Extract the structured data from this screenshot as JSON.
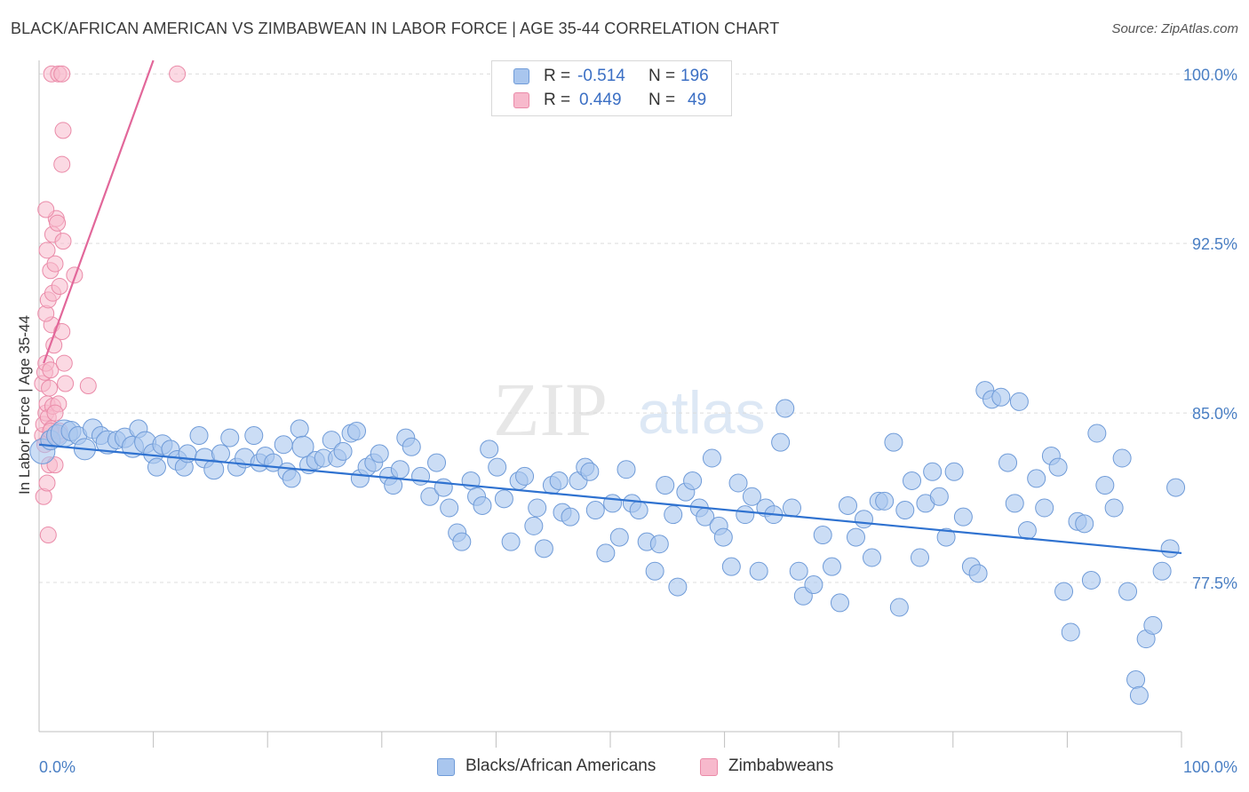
{
  "title": "BLACK/AFRICAN AMERICAN VS ZIMBABWEAN IN LABOR FORCE | AGE 35-44 CORRELATION CHART",
  "source": "Source: ZipAtlas.com",
  "watermark": {
    "zip": "ZIP",
    "atlas": "atlas"
  },
  "colors": {
    "blue_fill": "#a9c6ee",
    "blue_stroke": "#6f9bd8",
    "blue_line": "#2f72d0",
    "pink_fill": "#f7b9cc",
    "pink_stroke": "#ea8aa8",
    "pink_line": "#e2679a",
    "grid": "#dcdcdc",
    "tick_text": "#4a7fc4"
  },
  "stats": {
    "r_label": "R =",
    "n_label": "N =",
    "rows": [
      {
        "series": "Blacks/African Americans",
        "r": "-0.514",
        "n": "196"
      },
      {
        "series": "Zimbabweans",
        "r": "0.449",
        "n": "49"
      }
    ]
  },
  "legend": [
    "Blacks/African Americans",
    "Zimbabweans"
  ],
  "chart_data": {
    "type": "scatter",
    "title": "BLACK/AFRICAN AMERICAN VS ZIMBABWEAN IN LABOR FORCE | AGE 35-44 CORRELATION CHART",
    "xlabel": "",
    "ylabel": "In Labor Force | Age 35-44",
    "xlim": [
      0,
      100
    ],
    "ylim": [
      70.9,
      100.6
    ],
    "x_tick_labels": [
      "0.0%",
      "100.0%"
    ],
    "y_ticks": [
      77.5,
      85.0,
      92.5,
      100.0
    ],
    "y_tick_labels": [
      "77.5%",
      "85.0%",
      "92.5%",
      "100.0%"
    ],
    "grid": true,
    "legend_position": "bottom",
    "series": [
      {
        "name": "Blacks/African Americans",
        "color": "#a9c6ee",
        "trend": {
          "x": [
            0,
            100
          ],
          "y": [
            83.6,
            78.8
          ]
        },
        "points": [
          [
            0.3,
            83.3,
            14
          ],
          [
            1.0,
            83.8,
            11
          ],
          [
            1.6,
            84.0,
            12
          ],
          [
            2.2,
            84.1,
            15
          ],
          [
            2.8,
            84.2,
            11
          ],
          [
            3.4,
            84.0,
            10
          ],
          [
            4.0,
            83.4,
            12
          ],
          [
            4.7,
            84.3,
            11
          ],
          [
            5.4,
            84.0,
            10
          ],
          [
            6.0,
            83.7,
            13
          ],
          [
            6.8,
            83.8,
            10
          ],
          [
            7.5,
            83.9,
            11
          ],
          [
            8.2,
            83.5,
            12
          ],
          [
            8.7,
            84.3,
            10
          ],
          [
            9.3,
            83.7,
            12
          ],
          [
            10.0,
            83.2,
            11
          ],
          [
            10.3,
            82.6,
            10
          ],
          [
            10.8,
            83.6,
            11
          ],
          [
            11.5,
            83.4,
            10
          ],
          [
            12.1,
            82.9,
            11
          ],
          [
            12.7,
            82.6,
            10
          ],
          [
            13.0,
            83.2,
            10
          ],
          [
            14.0,
            84.0,
            10
          ],
          [
            14.5,
            83.0,
            11
          ],
          [
            15.3,
            82.5,
            11
          ],
          [
            15.9,
            83.2,
            10
          ],
          [
            16.7,
            83.9,
            10
          ],
          [
            17.3,
            82.6,
            10
          ],
          [
            18.0,
            83.0,
            11
          ],
          [
            18.8,
            84.0,
            10
          ],
          [
            19.3,
            82.8,
            10
          ],
          [
            19.8,
            83.1,
            10
          ],
          [
            20.5,
            82.8,
            10
          ],
          [
            21.4,
            83.6,
            10
          ],
          [
            21.7,
            82.4,
            10
          ],
          [
            22.1,
            82.1,
            10
          ],
          [
            22.8,
            84.3,
            10
          ],
          [
            23.1,
            83.5,
            12
          ],
          [
            23.6,
            82.7,
            10
          ],
          [
            24.2,
            82.9,
            10
          ],
          [
            24.9,
            83.0,
            10
          ],
          [
            25.6,
            83.8,
            10
          ],
          [
            26.1,
            83.0,
            10
          ],
          [
            26.6,
            83.3,
            10
          ],
          [
            27.3,
            84.1,
            10
          ],
          [
            27.8,
            84.2,
            10
          ],
          [
            28.1,
            82.1,
            10
          ],
          [
            28.7,
            82.6,
            10
          ],
          [
            29.3,
            82.8,
            10
          ],
          [
            29.8,
            83.2,
            10
          ],
          [
            30.6,
            82.2,
            10
          ],
          [
            31.0,
            81.8,
            10
          ],
          [
            31.6,
            82.5,
            10
          ],
          [
            32.1,
            83.9,
            10
          ],
          [
            32.6,
            83.5,
            10
          ],
          [
            33.4,
            82.2,
            10
          ],
          [
            34.2,
            81.3,
            10
          ],
          [
            34.8,
            82.8,
            10
          ],
          [
            35.4,
            81.7,
            10
          ],
          [
            35.9,
            80.8,
            10
          ],
          [
            36.6,
            79.7,
            10
          ],
          [
            37.0,
            79.3,
            10
          ],
          [
            37.8,
            82.0,
            10
          ],
          [
            38.3,
            81.3,
            10
          ],
          [
            38.8,
            80.9,
            10
          ],
          [
            39.4,
            83.4,
            10
          ],
          [
            40.1,
            82.6,
            10
          ],
          [
            40.7,
            81.2,
            10
          ],
          [
            41.3,
            79.3,
            10
          ],
          [
            42.0,
            82.0,
            10
          ],
          [
            42.5,
            82.2,
            10
          ],
          [
            43.3,
            80.0,
            10
          ],
          [
            43.6,
            80.8,
            10
          ],
          [
            44.2,
            79.0,
            10
          ],
          [
            44.9,
            81.8,
            10
          ],
          [
            45.5,
            82.0,
            10
          ],
          [
            45.8,
            80.6,
            10
          ],
          [
            46.5,
            80.4,
            10
          ],
          [
            47.2,
            82.0,
            10
          ],
          [
            47.8,
            82.6,
            10
          ],
          [
            48.2,
            82.4,
            10
          ],
          [
            48.7,
            80.7,
            10
          ],
          [
            49.6,
            78.8,
            10
          ],
          [
            50.2,
            81.0,
            10
          ],
          [
            50.8,
            79.5,
            10
          ],
          [
            51.4,
            82.5,
            10
          ],
          [
            51.9,
            81.0,
            10
          ],
          [
            52.5,
            80.7,
            10
          ],
          [
            53.2,
            79.3,
            10
          ],
          [
            53.9,
            78.0,
            10
          ],
          [
            54.3,
            79.2,
            10
          ],
          [
            54.8,
            81.8,
            10
          ],
          [
            55.5,
            80.5,
            10
          ],
          [
            55.9,
            77.3,
            10
          ],
          [
            56.6,
            81.5,
            10
          ],
          [
            57.2,
            82.0,
            10
          ],
          [
            57.8,
            80.8,
            10
          ],
          [
            58.3,
            80.4,
            10
          ],
          [
            58.9,
            83.0,
            10
          ],
          [
            59.5,
            80.0,
            10
          ],
          [
            59.9,
            79.5,
            10
          ],
          [
            60.6,
            78.2,
            10
          ],
          [
            61.2,
            81.9,
            10
          ],
          [
            61.8,
            80.5,
            10
          ],
          [
            62.4,
            81.3,
            10
          ],
          [
            63.0,
            78.0,
            10
          ],
          [
            63.6,
            80.8,
            10
          ],
          [
            64.3,
            80.5,
            10
          ],
          [
            64.9,
            83.7,
            10
          ],
          [
            65.3,
            85.2,
            10
          ],
          [
            65.9,
            80.8,
            10
          ],
          [
            66.5,
            78.0,
            10
          ],
          [
            66.9,
            76.9,
            10
          ],
          [
            67.8,
            77.4,
            10
          ],
          [
            68.6,
            79.6,
            10
          ],
          [
            69.4,
            78.2,
            10
          ],
          [
            70.1,
            76.6,
            10
          ],
          [
            70.8,
            80.9,
            10
          ],
          [
            71.5,
            79.5,
            10
          ],
          [
            72.2,
            80.3,
            10
          ],
          [
            72.9,
            78.6,
            10
          ],
          [
            73.5,
            81.1,
            10
          ],
          [
            74.0,
            81.1,
            10
          ],
          [
            74.8,
            83.7,
            10
          ],
          [
            75.3,
            76.4,
            10
          ],
          [
            75.8,
            80.7,
            10
          ],
          [
            76.4,
            82.0,
            10
          ],
          [
            77.1,
            78.6,
            10
          ],
          [
            77.6,
            81.0,
            10
          ],
          [
            78.2,
            82.4,
            10
          ],
          [
            78.8,
            81.3,
            10
          ],
          [
            79.4,
            79.5,
            10
          ],
          [
            80.1,
            82.4,
            10
          ],
          [
            80.9,
            80.4,
            10
          ],
          [
            81.6,
            78.2,
            10
          ],
          [
            82.2,
            77.9,
            10
          ],
          [
            82.8,
            86.0,
            10
          ],
          [
            83.4,
            85.6,
            10
          ],
          [
            84.2,
            85.7,
            10
          ],
          [
            84.8,
            82.8,
            10
          ],
          [
            85.4,
            81.0,
            10
          ],
          [
            85.8,
            85.5,
            10
          ],
          [
            86.5,
            79.8,
            10
          ],
          [
            87.3,
            82.1,
            10
          ],
          [
            88.0,
            80.8,
            10
          ],
          [
            88.6,
            83.1,
            10
          ],
          [
            89.2,
            82.6,
            10
          ],
          [
            89.7,
            77.1,
            10
          ],
          [
            90.3,
            75.3,
            10
          ],
          [
            90.9,
            80.2,
            10
          ],
          [
            91.5,
            80.1,
            10
          ],
          [
            92.1,
            77.6,
            10
          ],
          [
            92.6,
            84.1,
            10
          ],
          [
            93.3,
            81.8,
            10
          ],
          [
            94.1,
            80.8,
            10
          ],
          [
            94.8,
            83.0,
            10
          ],
          [
            95.3,
            77.1,
            10
          ],
          [
            96.0,
            73.2,
            10
          ],
          [
            96.3,
            72.5,
            10
          ],
          [
            96.9,
            75.0,
            10
          ],
          [
            97.5,
            75.6,
            10
          ],
          [
            98.3,
            78.0,
            10
          ],
          [
            99.0,
            79.0,
            10
          ],
          [
            99.5,
            81.7,
            10
          ]
        ]
      },
      {
        "name": "Zimbabweans",
        "color": "#f7b9cc",
        "trend": {
          "x": [
            0.4,
            10.0
          ],
          "y": [
            87.2,
            100.6
          ]
        },
        "points": [
          [
            0.3,
            84.0,
            9
          ],
          [
            0.4,
            84.5,
            9
          ],
          [
            0.5,
            83.6,
            9
          ],
          [
            0.6,
            85.0,
            9
          ],
          [
            0.7,
            85.4,
            9
          ],
          [
            0.3,
            86.3,
            9
          ],
          [
            0.5,
            86.8,
            9
          ],
          [
            0.6,
            87.2,
            9
          ],
          [
            0.8,
            84.8,
            9
          ],
          [
            0.9,
            82.7,
            9
          ],
          [
            0.4,
            81.3,
            9
          ],
          [
            0.7,
            81.9,
            9
          ],
          [
            0.8,
            79.6,
            9
          ],
          [
            1.0,
            83.9,
            9
          ],
          [
            1.1,
            84.3,
            9
          ],
          [
            1.2,
            85.3,
            9
          ],
          [
            0.9,
            86.1,
            9
          ],
          [
            1.0,
            86.9,
            9
          ],
          [
            1.3,
            88.0,
            9
          ],
          [
            1.1,
            88.9,
            9
          ],
          [
            0.6,
            89.4,
            9
          ],
          [
            0.8,
            90.0,
            9
          ],
          [
            1.2,
            90.3,
            9
          ],
          [
            1.0,
            91.3,
            9
          ],
          [
            1.4,
            91.6,
            9
          ],
          [
            0.7,
            92.2,
            9
          ],
          [
            1.2,
            92.9,
            9
          ],
          [
            1.5,
            93.6,
            9
          ],
          [
            0.6,
            94.0,
            9
          ],
          [
            1.6,
            93.4,
            9
          ],
          [
            2.1,
            92.6,
            9
          ],
          [
            1.8,
            90.6,
            9
          ],
          [
            2.0,
            88.6,
            9
          ],
          [
            2.2,
            87.2,
            9
          ],
          [
            2.3,
            86.3,
            9
          ],
          [
            1.7,
            85.4,
            9
          ],
          [
            1.4,
            85.0,
            9
          ],
          [
            3.1,
            91.1,
            9
          ],
          [
            4.3,
            86.2,
            9
          ],
          [
            1.7,
            84.0,
            9
          ],
          [
            1.4,
            82.7,
            9
          ],
          [
            1.8,
            84.2,
            9
          ],
          [
            2.0,
            96.0,
            9
          ],
          [
            2.1,
            97.5,
            9
          ],
          [
            1.1,
            100.0,
            9
          ],
          [
            1.7,
            100.0,
            9
          ],
          [
            2.0,
            100.0,
            9
          ],
          [
            12.1,
            100.0,
            9
          ],
          [
            1.0,
            84.2,
            9
          ]
        ]
      }
    ]
  }
}
